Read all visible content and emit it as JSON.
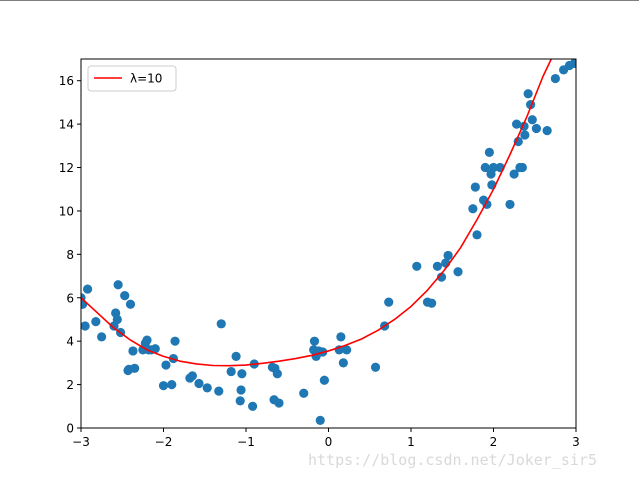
{
  "chart_data": {
    "type": "scatter",
    "xlim": [
      -3,
      3
    ],
    "ylim": [
      0,
      17
    ],
    "xticks": [
      -3,
      -2,
      -1,
      0,
      1,
      2,
      3
    ],
    "yticks": [
      0,
      2,
      4,
      6,
      8,
      10,
      12,
      14,
      16
    ],
    "grid": false,
    "legend": {
      "placement": "top-left",
      "entries": [
        "λ=10"
      ]
    },
    "scatter_color": "#1f77b4",
    "line_color": "#ff0000",
    "scatter": {
      "x": [
        -3.0,
        -2.98,
        -2.95,
        -2.92,
        -2.82,
        -2.75,
        -2.6,
        -2.58,
        -2.56,
        -2.55,
        -2.52,
        -2.47,
        -2.43,
        -2.4,
        -2.37,
        -2.42,
        -2.35,
        -2.25,
        -2.2,
        -2.18,
        -2.22,
        -2.15,
        -2.1,
        -2.0,
        -1.97,
        -1.9,
        -1.88,
        -1.86,
        -1.68,
        -1.65,
        -1.57,
        -1.47,
        -1.33,
        -1.3,
        -1.18,
        -1.12,
        -1.07,
        -1.05,
        -1.06,
        -0.92,
        -0.9,
        -0.68,
        -0.66,
        -0.65,
        -0.6,
        -0.62,
        -0.3,
        -0.18,
        -0.17,
        -0.15,
        -0.12,
        -0.1,
        -0.07,
        -0.05,
        0.13,
        0.15,
        0.18,
        0.22,
        0.57,
        0.68,
        0.73,
        1.07,
        1.2,
        1.25,
        1.32,
        1.37,
        1.42,
        1.45,
        1.57,
        1.75,
        1.78,
        1.8,
        1.88,
        1.9,
        1.92,
        1.95,
        1.97,
        1.98,
        2.0,
        2.08,
        2.2,
        2.25,
        2.28,
        2.3,
        2.32,
        2.35,
        2.37,
        2.38,
        2.42,
        2.45,
        2.47,
        2.52,
        2.65,
        2.75,
        2.85,
        2.92,
        2.98
      ],
      "y": [
        6.0,
        5.7,
        4.7,
        6.4,
        4.9,
        4.2,
        4.7,
        5.3,
        5.0,
        6.6,
        4.4,
        6.1,
        2.65,
        5.7,
        3.55,
        2.7,
        2.75,
        3.6,
        4.05,
        3.6,
        3.9,
        3.6,
        3.65,
        1.95,
        2.9,
        2.0,
        3.2,
        4.0,
        2.3,
        2.4,
        2.05,
        1.85,
        1.7,
        4.8,
        2.6,
        3.3,
        1.25,
        2.5,
        1.75,
        1.0,
        2.95,
        2.8,
        1.3,
        2.75,
        1.15,
        2.5,
        1.6,
        3.6,
        4.0,
        3.3,
        3.55,
        0.35,
        3.5,
        2.2,
        3.6,
        4.2,
        3.0,
        3.6,
        2.8,
        4.7,
        5.8,
        7.45,
        5.8,
        5.75,
        7.45,
        6.95,
        7.6,
        7.95,
        7.2,
        10.1,
        11.1,
        8.9,
        10.5,
        12.0,
        10.3,
        12.7,
        11.7,
        11.2,
        12.0,
        12.0,
        10.3,
        11.7,
        14.0,
        13.2,
        12.0,
        12.0,
        13.9,
        13.5,
        15.4,
        14.9,
        14.2,
        13.8,
        13.7,
        16.1,
        16.5,
        16.7,
        16.8
      ]
    },
    "line": {
      "name": "λ=10",
      "x": [
        -3.0,
        -2.8,
        -2.6,
        -2.4,
        -2.2,
        -2.0,
        -1.8,
        -1.6,
        -1.4,
        -1.2,
        -1.0,
        -0.8,
        -0.6,
        -0.4,
        -0.2,
        0.0,
        0.2,
        0.4,
        0.6,
        0.8,
        1.0,
        1.2,
        1.4,
        1.6,
        1.8,
        2.0,
        2.2,
        2.4,
        2.6,
        2.7,
        2.8
      ],
      "y": [
        6.0,
        5.3,
        4.6,
        4.05,
        3.6,
        3.3,
        3.08,
        2.95,
        2.88,
        2.87,
        2.9,
        2.98,
        3.08,
        3.2,
        3.35,
        3.55,
        3.8,
        4.1,
        4.5,
        5.0,
        5.6,
        6.35,
        7.25,
        8.3,
        9.6,
        11.0,
        12.6,
        14.3,
        16.2,
        17.0,
        17.5
      ]
    }
  },
  "watermark": "https://blog.csdn.net/Joker_sir5"
}
